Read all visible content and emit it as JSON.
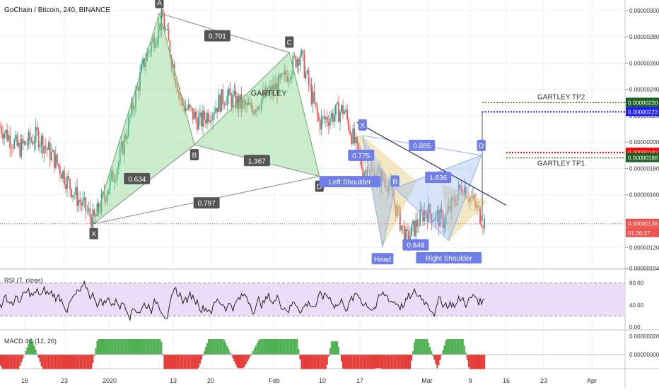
{
  "header": {
    "title": "GoChain / Bitcoin, 240, BINANCE"
  },
  "colors": {
    "up": "#26a69a",
    "down": "#ef5350",
    "pattern_green": "#8bd88b",
    "pattern_yellow": "#e6d48a",
    "pattern_blue": "#8db2f5",
    "label_dark": "#555555",
    "label_blue": "#6f7ee8",
    "tp2": "#1a1aff",
    "d_line": "#ff0000",
    "rsi_band": "#e6d5f5",
    "rsi_line": "#222222",
    "macd_up": "#4caf50",
    "macd_down": "#e53935"
  },
  "chart_data": [
    {
      "type": "candlestick",
      "title": "GoChain / Bitcoin, 240, BINANCE",
      "ylim": [
        1.035e-06,
        3.08e-06
      ],
      "y_ticks": [
        "0.00000300",
        "0.00000280",
        "0.00000260",
        "0.00000240",
        "0.00000220",
        "0.00000200",
        "0.00000180",
        "0.00000160",
        "0.00000140",
        "0.00000120",
        "0.00000104"
      ],
      "price_path": [
        {
          "t": 0.0,
          "p": 2.12e-06
        },
        {
          "t": 0.03,
          "p": 1.95e-06
        },
        {
          "t": 0.06,
          "p": 2.05e-06
        },
        {
          "t": 0.09,
          "p": 1.85e-06
        },
        {
          "t": 0.12,
          "p": 1.6e-06
        },
        {
          "t": 0.15,
          "p": 1.4e-06
        },
        {
          "t": 0.19,
          "p": 1.85e-06
        },
        {
          "t": 0.23,
          "p": 2.6e-06
        },
        {
          "t": 0.26,
          "p": 2.95e-06
        },
        {
          "t": 0.29,
          "p": 2.3e-06
        },
        {
          "t": 0.32,
          "p": 2.15e-06
        },
        {
          "t": 0.36,
          "p": 2.35e-06
        },
        {
          "t": 0.4,
          "p": 2.25e-06
        },
        {
          "t": 0.45,
          "p": 2.45e-06
        },
        {
          "t": 0.48,
          "p": 2.68e-06
        },
        {
          "t": 0.51,
          "p": 2.15e-06
        },
        {
          "t": 0.55,
          "p": 2.25e-06
        },
        {
          "t": 0.58,
          "p": 1.8e-06
        },
        {
          "t": 0.62,
          "p": 1.7e-06
        },
        {
          "t": 0.65,
          "p": 1.25e-06
        },
        {
          "t": 0.68,
          "p": 1.48e-06
        },
        {
          "t": 0.71,
          "p": 1.4e-06
        },
        {
          "t": 0.74,
          "p": 1.68e-06
        },
        {
          "t": 0.78,
          "p": 1.35e-06
        },
        {
          "t": 0.82,
          "p": 1.48e-06
        }
      ],
      "horizontal_lines": [
        {
          "name": "GARTLEY TP2",
          "label": "GARTLEY TP2",
          "value": 2.3e-06
        },
        {
          "name": "TP2 target",
          "value": 2.23e-06
        },
        {
          "name": "D",
          "value": 1.92e-06
        },
        {
          "name": "GARTLEY TP1",
          "label": "GARTLEY TP1",
          "value": 1.88e-06
        },
        {
          "name": "last price",
          "value": 1.38e-06
        }
      ],
      "price_labels": [
        {
          "value": 2.3e-06,
          "text": "0.00000230"
        },
        {
          "value": 2.23e-06,
          "text": "0.00000223"
        },
        {
          "value": 1.92e-06,
          "text": "0.00000192"
        },
        {
          "value": 1.88e-06,
          "text": "0.00000188"
        },
        {
          "value": 1.38e-06,
          "text": "0.00000138"
        },
        {
          "value": 1.31e-06,
          "text": "01:26:37"
        }
      ],
      "pattern_points": [
        {
          "label": "X",
          "t": 0.15,
          "p": 1.38e-06
        },
        {
          "label": "A",
          "t": 0.255,
          "p": 2.98e-06
        },
        {
          "label": "B",
          "t": 0.311,
          "p": 1.98e-06
        },
        {
          "label": "C",
          "t": 0.463,
          "p": 2.68e-06
        },
        {
          "label": "D",
          "t": 0.511,
          "p": 1.74e-06
        },
        {
          "label": "X",
          "t": 0.58,
          "p": 2.05e-06
        },
        {
          "label": "B",
          "t": 0.632,
          "p": 1.65e-06
        },
        {
          "label": "D",
          "t": 0.77,
          "p": 1.9e-06
        },
        {
          "label": "Head",
          "t": 0.612,
          "p": 1.2e-06
        },
        {
          "label": "Right Shoulder",
          "t": 0.718,
          "p": 1.25e-06
        }
      ],
      "ratio_labels": [
        "0.701",
        "0.634",
        "1.367",
        "0.797",
        "0.885",
        "0.775",
        "1.636",
        "0.848"
      ],
      "annotations": [
        "GARTLEY",
        "Left Shoulder",
        "Head",
        "Right Shoulder"
      ],
      "x_tick_labels": [
        "16",
        "23",
        "2020",
        "13",
        "20",
        "Feb",
        "10",
        "17",
        "Mar",
        "9",
        "16",
        "23",
        "Apr"
      ]
    },
    {
      "type": "line",
      "title": "RSI (7, close)",
      "ylim": [
        0,
        100
      ],
      "y_ticks": [
        "80.00",
        "40.00",
        "0.00"
      ],
      "band": [
        20,
        80
      ]
    },
    {
      "type": "bar",
      "title": "MACD 4C (12, 26)",
      "y_ticks": [
        "0.00000020",
        "0.00000000"
      ]
    }
  ]
}
